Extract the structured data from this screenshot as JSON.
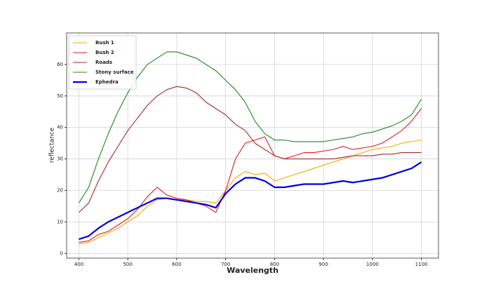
{
  "chart_data": {
    "type": "line",
    "x_label": "Wavelength",
    "y_label": "reflectance",
    "x": [
      400,
      420,
      440,
      460,
      480,
      500,
      520,
      540,
      560,
      580,
      600,
      620,
      640,
      660,
      680,
      700,
      720,
      740,
      760,
      780,
      800,
      820,
      840,
      860,
      880,
      900,
      920,
      940,
      960,
      980,
      1000,
      1020,
      1040,
      1060,
      1080,
      1100
    ],
    "series": [
      {
        "name": "Bush 1",
        "color": "#ffa500",
        "values": [
          3,
          3.5,
          5,
          6.5,
          8,
          10,
          12,
          15,
          17,
          17.5,
          17,
          17,
          16.5,
          16.5,
          16,
          20,
          24,
          26,
          25,
          25.5,
          23,
          24,
          25,
          26,
          27,
          28,
          29,
          30,
          31,
          32,
          33,
          33.5,
          34,
          35,
          35.5,
          36
        ]
      },
      {
        "name": "Bush 2",
        "color": "#e31a1c",
        "values": [
          3.5,
          4,
          6,
          7,
          9,
          11,
          14,
          18,
          21,
          18.5,
          17.5,
          17,
          16,
          15,
          13,
          20,
          30,
          35,
          36,
          37,
          31,
          30,
          31,
          32,
          32,
          32.5,
          33,
          34,
          33,
          33.5,
          34,
          35,
          37,
          39,
          42,
          46
        ]
      },
      {
        "name": "Roads",
        "color": "#a52a2a",
        "values": [
          13,
          16,
          23,
          29,
          34,
          39,
          43,
          47,
          50,
          52,
          53,
          52.5,
          51,
          48,
          46,
          44,
          41,
          39,
          35,
          33,
          31,
          30,
          30,
          30,
          30,
          30,
          30,
          30.5,
          31,
          31,
          31,
          31.5,
          31.5,
          32,
          32,
          32
        ]
      },
      {
        "name": "Stony surface",
        "color": "#1a8a1a",
        "values": [
          16,
          21,
          30,
          38,
          45,
          51,
          56,
          60,
          62,
          64,
          64,
          63,
          62,
          60,
          58,
          55,
          52,
          48,
          42,
          38,
          36,
          36,
          35.5,
          35.5,
          35.5,
          35.5,
          36,
          36.5,
          37,
          38,
          38.5,
          39.5,
          40.5,
          42,
          44,
          49
        ]
      },
      {
        "name": "Ephedra",
        "color": "#0000dd",
        "width": 2.2,
        "values": [
          4.5,
          5.5,
          8,
          10,
          11.5,
          13,
          14.5,
          16,
          17.5,
          17.5,
          17,
          16.5,
          16,
          15.5,
          14.5,
          19,
          22,
          24,
          24,
          23,
          21,
          21,
          21.5,
          22,
          22,
          22,
          22.5,
          23,
          22.5,
          23,
          23.5,
          24,
          25,
          26,
          27,
          29
        ]
      }
    ],
    "xlim": [
      375,
      1135
    ],
    "ylim": [
      -1.5,
      70
    ],
    "xticks": [
      400,
      500,
      600,
      700,
      800,
      900,
      1000,
      1100
    ],
    "yticks": [
      0,
      10,
      20,
      30,
      40,
      50,
      60
    ],
    "grid": true,
    "legend": "upper left"
  }
}
